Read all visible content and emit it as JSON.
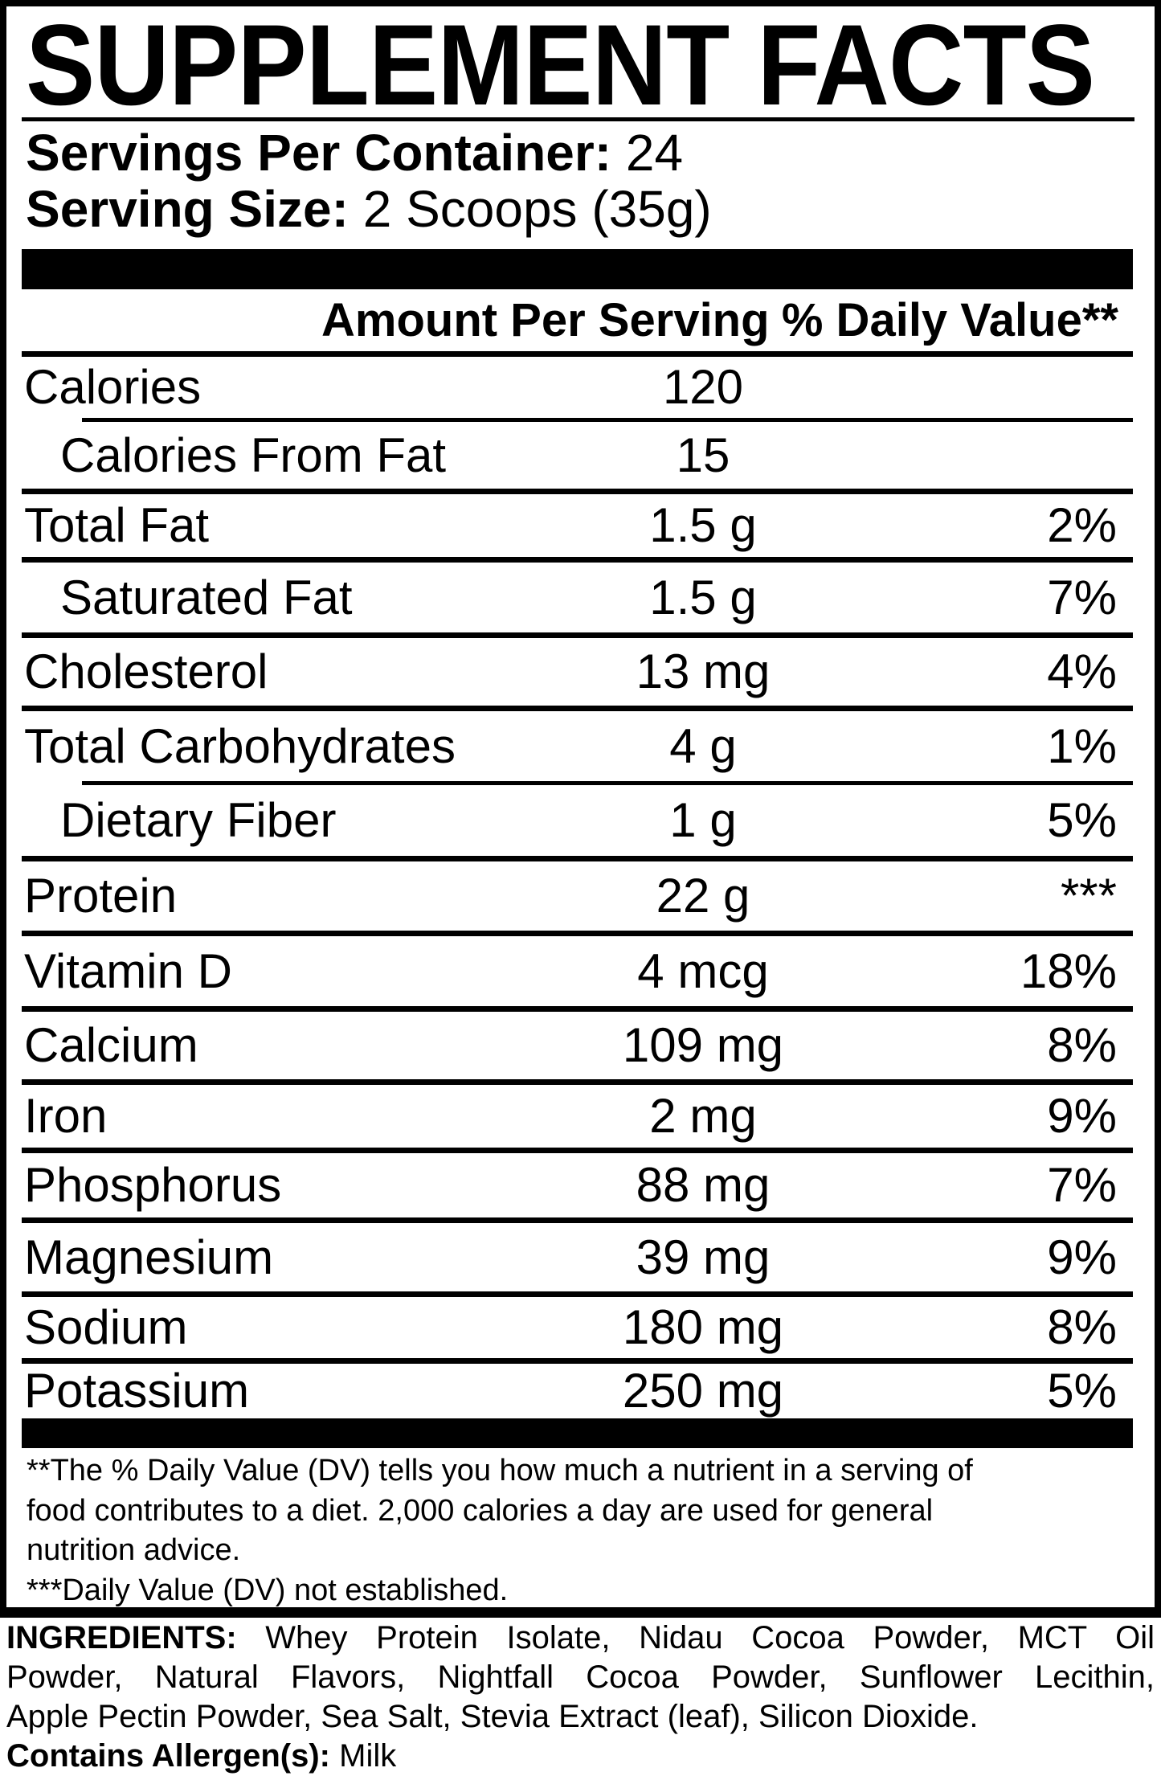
{
  "title": "SUPPLEMENT FACTS",
  "servings": {
    "label": "Servings Per Container:",
    "value": "24"
  },
  "serving_size": {
    "label": "Serving Size:",
    "value": "2 Scoops (35g)"
  },
  "table": {
    "amount_header": "Amount Per Serving",
    "dv_header": "% Daily Value**",
    "rows": [
      {
        "label": "Calories",
        "amount": "120",
        "dv": "",
        "indent": false,
        "sep": "full"
      },
      {
        "label": "Calories From Fat",
        "amount": "15",
        "dv": "",
        "indent": true,
        "sep": "thin"
      },
      {
        "label": "Total Fat",
        "amount": "1.5 g",
        "dv": "2%",
        "indent": false,
        "sep": "full"
      },
      {
        "label": "Saturated Fat",
        "amount": "1.5 g",
        "dv": "7%",
        "indent": true,
        "sep": "full"
      },
      {
        "label": "Cholesterol",
        "amount": "13 mg",
        "dv": "4%",
        "indent": false,
        "sep": "full"
      },
      {
        "label": "Total Carbohydrates",
        "amount": "4 g",
        "dv": "1%",
        "indent": false,
        "sep": "full"
      },
      {
        "label": "Dietary Fiber",
        "amount": "1 g",
        "dv": "5%",
        "indent": true,
        "sep": "thin"
      },
      {
        "label": "Protein",
        "amount": "22 g",
        "dv": "***",
        "indent": false,
        "sep": "full"
      },
      {
        "label": "Vitamin D",
        "amount": "4 mcg",
        "dv": "18%",
        "indent": false,
        "sep": "full"
      },
      {
        "label": "Calcium",
        "amount": "109 mg",
        "dv": "8%",
        "indent": false,
        "sep": "full"
      },
      {
        "label": "Iron",
        "amount": "2 mg",
        "dv": "9%",
        "indent": false,
        "sep": "full"
      },
      {
        "label": "Phosphorus",
        "amount": "88 mg",
        "dv": "7%",
        "indent": false,
        "sep": "full"
      },
      {
        "label": "Magnesium",
        "amount": "39 mg",
        "dv": "9%",
        "indent": false,
        "sep": "full"
      },
      {
        "label": "Sodium",
        "amount": "180 mg",
        "dv": "8%",
        "indent": false,
        "sep": "full"
      },
      {
        "label": "Potassium",
        "amount": "250 mg",
        "dv": "5%",
        "indent": false,
        "sep": "full"
      }
    ]
  },
  "footnote": {
    "lines": [
      "**The % Daily Value (DV) tells you how much a nutrient in a serving of",
      "food contributes to a diet. 2,000 calories a day are used for general",
      "nutrition advice.",
      "***Daily Value (DV) not established."
    ]
  },
  "ingredients": {
    "label": "INGREDIENTS:",
    "lines": [
      " Whey Protein Isolate, Nidau Cocoa Powder, MCT Oil",
      "Powder, Natural Flavors, Nightfall Cocoa Powder, Sunflower Lecithin,",
      "Apple Pectin Powder, Sea Salt, Stevia Extract (leaf), Silicon Dioxide."
    ]
  },
  "allergen": {
    "label": "Contains Allergen(s):",
    "value": "Milk"
  },
  "colors": {
    "ink": "#000000",
    "paper": "#ffffff"
  }
}
